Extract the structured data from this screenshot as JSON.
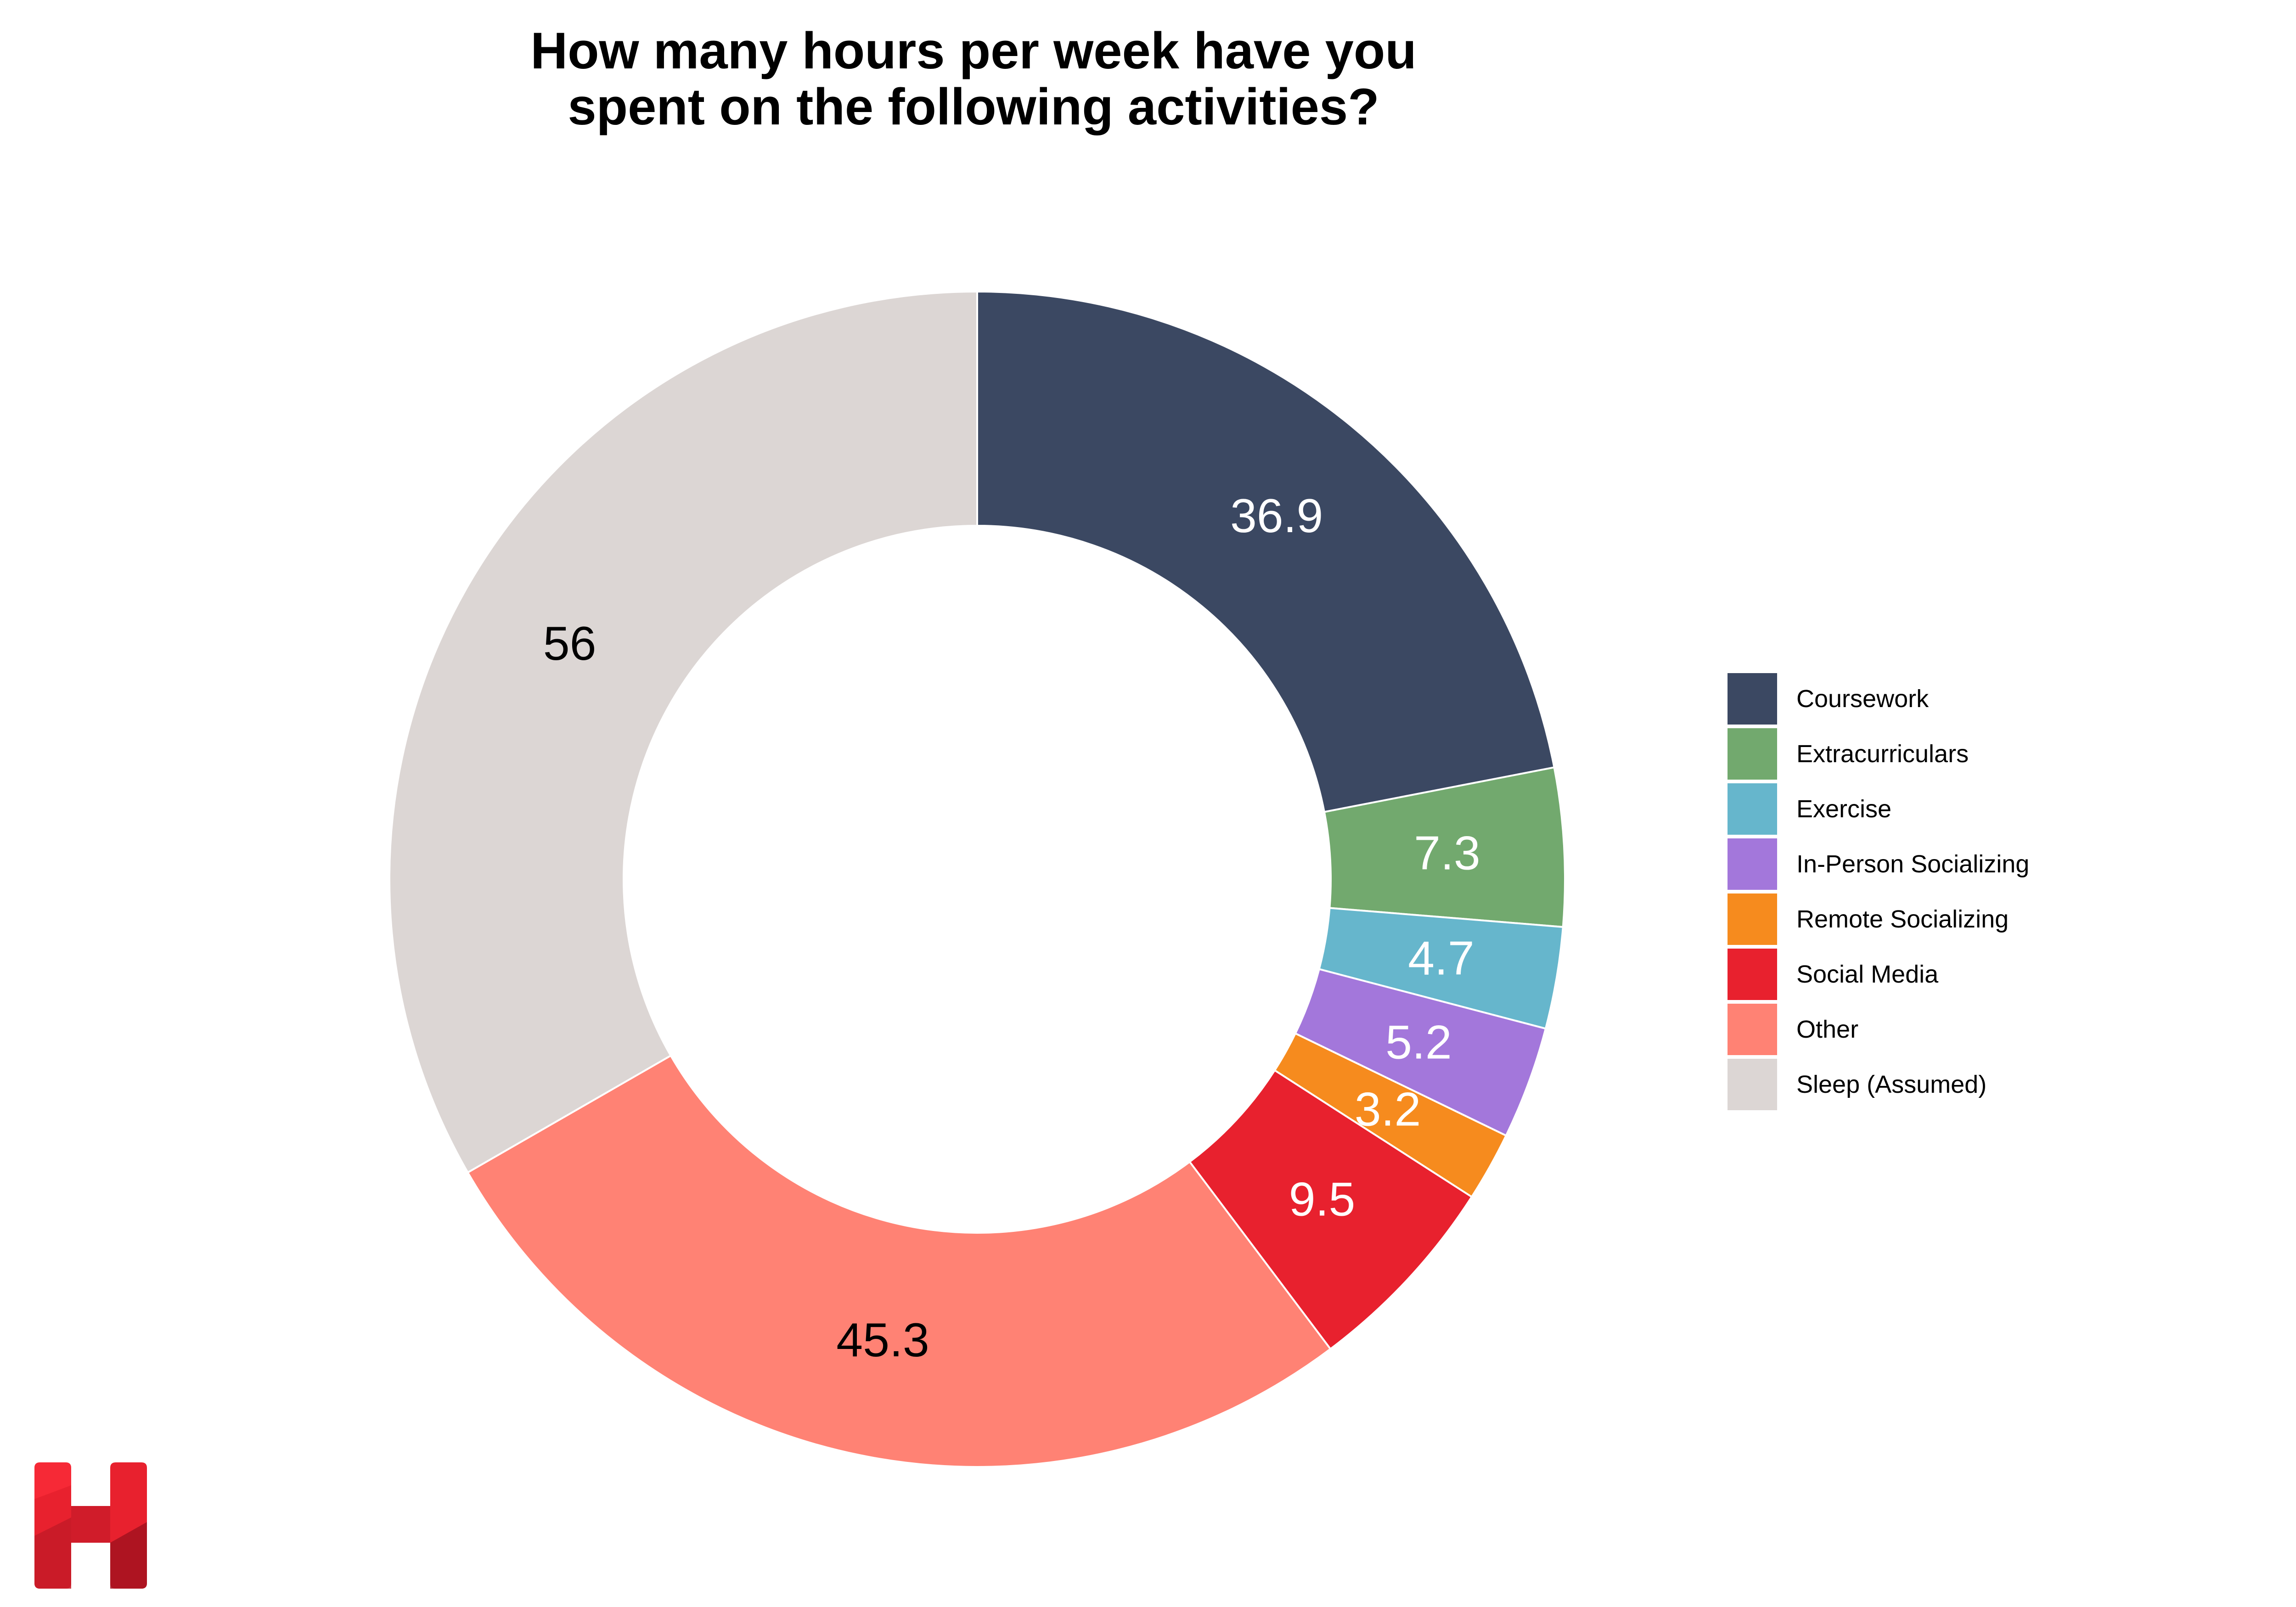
{
  "chart_data": {
    "type": "pie",
    "title": "How many hours per week have you spent on the following activities?",
    "title_lines": [
      "How many hours per week have you",
      "spent on the following activities?"
    ],
    "donut": true,
    "legend_position": "right",
    "categories": [
      "Coursework",
      "Extracurriculars",
      "Exercise",
      "In-Person Socializing",
      "Remote Socializing",
      "Social Media",
      "Other",
      "Sleep (Assumed)"
    ],
    "values": [
      36.9,
      7.3,
      4.7,
      5.2,
      3.2,
      9.5,
      45.3,
      56
    ],
    "labels": [
      "36.9",
      "7.3",
      "4.7",
      "5.2",
      "3.2",
      "9.5",
      "45.3",
      "56"
    ],
    "colors": [
      "#3B4862",
      "#72A96E",
      "#66B6CC",
      "#A377DB",
      "#F68B1E",
      "#E8212E",
      "#FF8274",
      "#DCD6D4"
    ],
    "label_colors": [
      "#FFFFFF",
      "#FFFFFF",
      "#FFFFFF",
      "#FFFFFF",
      "#FFFFFF",
      "#FFFFFF",
      "#000000",
      "#000000"
    ]
  },
  "logo": {
    "icon": "h-logo-icon",
    "color": "#E8212E"
  }
}
